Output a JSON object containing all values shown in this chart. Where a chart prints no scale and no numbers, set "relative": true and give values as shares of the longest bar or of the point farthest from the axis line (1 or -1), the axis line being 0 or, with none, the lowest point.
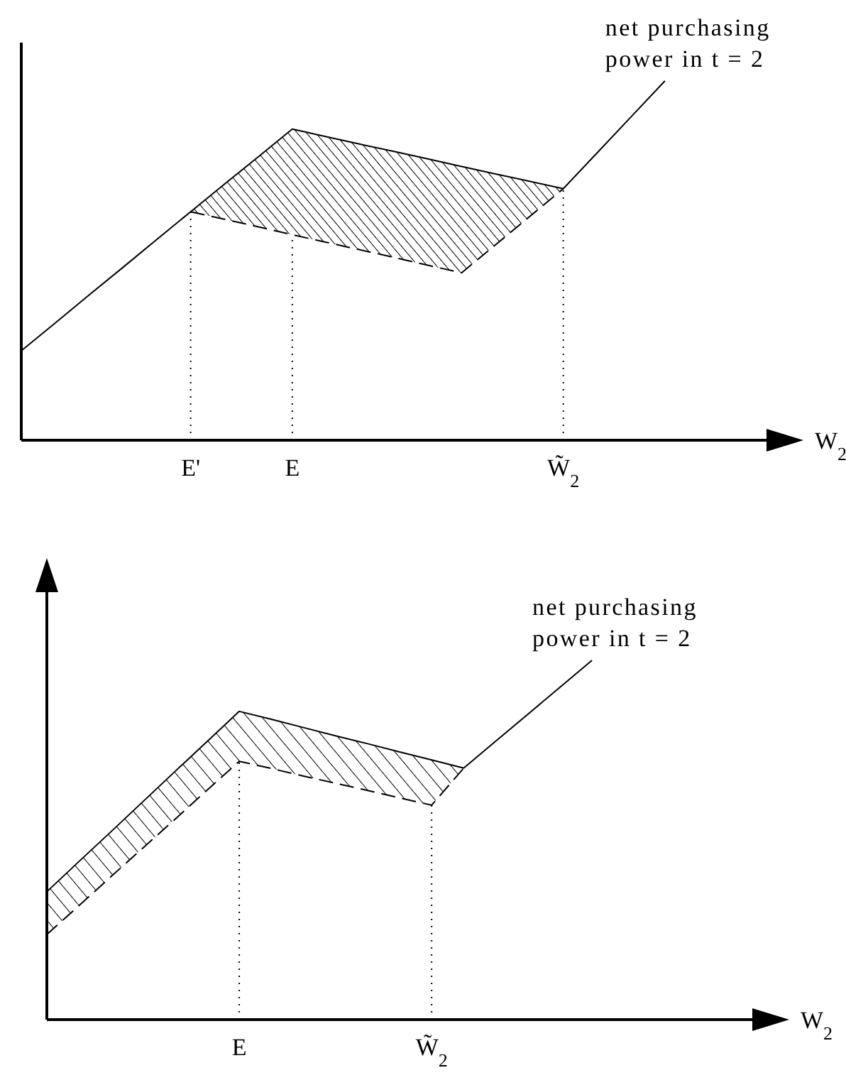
{
  "chart_data": [
    {
      "type": "line",
      "relative": true,
      "xlabel": "W$_{2}$",
      "grid": "x",
      "categories": [
        null,
        null,
        null,
        null,
        null,
        "E'",
        null,
        null,
        "E",
        null,
        null,
        null,
        null,
        null,
        null,
        null,
        "W̃$_{2}$",
        null,
        null,
        null,
        null,
        null
      ],
      "series": [
        {
          "color": "#000000",
          "values": [
            0.249,
            0.326,
            0.404,
            0.481,
            0.559,
            0.636,
            0.713,
            0.789,
            0.866,
            0.845,
            0.824,
            0.804,
            0.783,
            0.762,
            0.741,
            0.721,
            0.7,
            0.8,
            0.9,
            1.0,
            null,
            null
          ]
        },
        {
          "color": "#000000",
          "line_style": "dashed",
          "values": [
            null,
            null,
            null,
            null,
            null,
            0.636,
            0.615,
            0.594,
            0.572,
            0.551,
            0.53,
            0.509,
            0.487,
            0.466,
            0.544,
            0.622,
            0.7,
            null,
            null,
            null,
            null,
            null
          ],
          "lower": [
            null,
            null,
            null,
            null,
            null,
            0.636,
            0.615,
            0.594,
            0.572,
            0.551,
            0.53,
            0.509,
            0.487,
            0.466,
            0.544,
            0.622,
            0.7,
            null,
            null,
            null,
            null,
            null
          ],
          "upper": [
            null,
            null,
            null,
            null,
            null,
            0.636,
            0.713,
            0.789,
            0.866,
            0.845,
            0.824,
            0.804,
            0.783,
            0.762,
            0.741,
            0.721,
            0.7,
            null,
            null,
            null,
            null,
            null
          ]
        }
      ],
      "annotations": [
        "net purchasing power in t = 2"
      ]
    },
    {
      "type": "line",
      "relative": true,
      "xlabel": "W$_{2}$",
      "grid": "x",
      "categories": [
        null,
        null,
        null,
        null,
        null,
        null,
        "E",
        null,
        null,
        null,
        null,
        null,
        "W̃$_{2}$",
        null,
        null,
        null,
        null,
        null,
        null,
        null,
        null,
        null
      ],
      "series": [
        {
          "color": "#000000",
          "values": [
            0.356,
            0.44,
            0.523,
            0.607,
            0.691,
            0.774,
            0.858,
            0.836,
            0.813,
            0.79,
            0.768,
            0.745,
            0.723,
            0.7,
            0.775,
            0.85,
            0.925,
            1.0,
            null,
            null,
            null,
            null
          ]
        },
        {
          "color": "#000000",
          "line_style": "dashed",
          "values": [
            0.237,
            0.317,
            0.398,
            0.478,
            0.558,
            0.639,
            0.719,
            0.699,
            0.678,
            0.658,
            0.638,
            0.617,
            0.597,
            0.7,
            null,
            null,
            null,
            null,
            null,
            null,
            null,
            null
          ],
          "lower": [
            0.237,
            0.317,
            0.398,
            0.478,
            0.558,
            0.639,
            0.719,
            0.699,
            0.678,
            0.658,
            0.638,
            0.617,
            0.597,
            0.7,
            null,
            null,
            null,
            null,
            null,
            null,
            null,
            null
          ],
          "upper": [
            0.356,
            0.44,
            0.523,
            0.607,
            0.691,
            0.774,
            0.858,
            0.836,
            0.813,
            0.79,
            0.768,
            0.745,
            0.723,
            0.7,
            null,
            null,
            null,
            null,
            null,
            null,
            null,
            null
          ]
        }
      ],
      "annotations": [
        "net purchasing power in t = 2"
      ]
    }
  ]
}
